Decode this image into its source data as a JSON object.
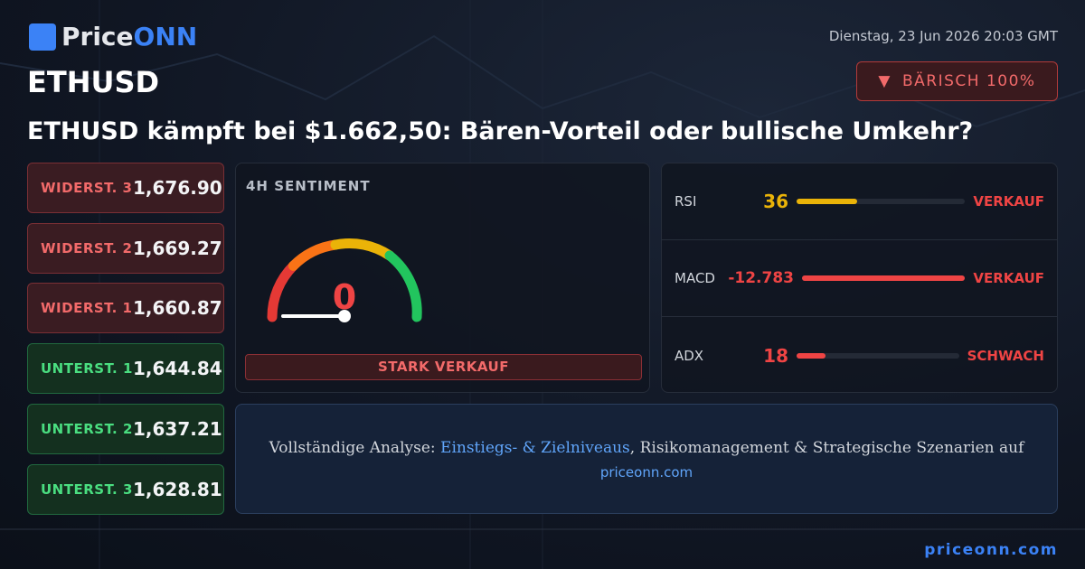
{
  "header": {
    "brand_a": "Price",
    "brand_b": "ONN",
    "date": "Dienstag, 23 Jun 2026 20:03 GMT",
    "symbol": "ETHUSD",
    "badge": "BÄRISCH 100%",
    "headline": "ETHUSD kämpft bei $1.662,50: Bären-Vorteil oder bullische Umkehr?"
  },
  "levels": [
    {
      "label": "WIDERST. 3",
      "value": "1,676.90"
    },
    {
      "label": "WIDERST. 2",
      "value": "1,669.27"
    },
    {
      "label": "WIDERST. 1",
      "value": "1,660.87"
    },
    {
      "label": "UNTERST. 1",
      "value": "1,644.84"
    },
    {
      "label": "UNTERST. 2",
      "value": "1,637.21"
    },
    {
      "label": "UNTERST. 3",
      "value": "1,628.81"
    }
  ],
  "sentiment": {
    "title": "4H SENTIMENT",
    "value": 0,
    "label": "STARK VERKAUF"
  },
  "indicators": [
    {
      "name": "RSI",
      "value": 36,
      "signal": "VERKAUF"
    },
    {
      "name": "MACD",
      "value": -12.783,
      "signal": "VERKAUF"
    },
    {
      "name": "ADX",
      "value": 18,
      "signal": "SCHWACH"
    }
  ],
  "cta": {
    "lead": "Vollständige Analyse: ",
    "link": "Einstiegs- & Zielniveaus",
    "rest": ", Risikomanagement & Strategische Szenarien auf",
    "url": "priceonn.com"
  },
  "footer": {
    "url": "priceonn.com"
  }
}
